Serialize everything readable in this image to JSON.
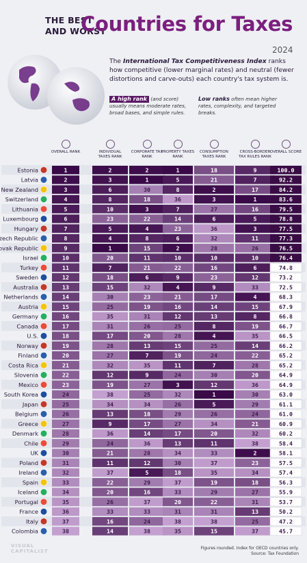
{
  "header": {
    "small_line1": "THE BEST",
    "small_line2": "AND WORST",
    "big": "Countries for Taxes",
    "year": "2024"
  },
  "description": {
    "prefix": "The ",
    "index_name": "International Tax Competitiveness Index",
    "rest": " ranks how competitive (lower marginal rates) and neutral (fewer distortions and carve-outs) each country's tax system is."
  },
  "legend": {
    "high_label": "A high rank",
    "high_suffix": " (and score) usually means moderate rates, broad bases, and simple rules.",
    "low_label": "Low ranks",
    "low_suffix": " often mean higher rates, complexity, and targeted breaks."
  },
  "footnote": {
    "line1": "Figures rounded. Index for OECD countries only.",
    "line2": "Source: Tax Foundation"
  },
  "brand": {
    "line1": "VISUAL",
    "line2": "CAPITALIST"
  },
  "colors": {
    "dark": "#4a0f55",
    "mid": "#7e2a8a",
    "light": "#b98ec4",
    "score_bg": "#3a0c45",
    "accent": "#7b1f7e"
  },
  "chart_data": {
    "type": "table",
    "columns": [
      {
        "key": "overall",
        "label": "OVERALL RANK",
        "icon": "trophy-icon"
      },
      {
        "key": "individual",
        "label": "INDIVIDUAL TAXES RANK",
        "icon": "person-icon"
      },
      {
        "key": "corporate",
        "label": "CORPORATE TAX RANK",
        "icon": "building-icon"
      },
      {
        "key": "property",
        "label": "PROPERTY TAXES RANK",
        "icon": "house-icon"
      },
      {
        "key": "consumption",
        "label": "CONSUMPTION TAXES RANK",
        "icon": "cart-icon"
      },
      {
        "key": "crossborder",
        "label": "CROSS-BORDER TAX RULES RANK",
        "icon": "globe-icon"
      },
      {
        "key": "score",
        "label": "OVERALL SCORE",
        "icon": "magnifier-icon"
      }
    ],
    "rows": [
      {
        "country": "Estonia",
        "values": [
          1,
          2,
          2,
          1,
          18,
          9,
          "100.0"
        ]
      },
      {
        "country": "Latvia",
        "values": [
          2,
          3,
          1,
          5,
          21,
          7,
          "92.2"
        ]
      },
      {
        "country": "New Zealand",
        "values": [
          3,
          6,
          30,
          8,
          2,
          17,
          "84.2"
        ]
      },
      {
        "country": "Switzerland",
        "values": [
          4,
          8,
          18,
          36,
          3,
          1,
          "83.6"
        ]
      },
      {
        "country": "Lithuania",
        "values": [
          5,
          10,
          3,
          7,
          27,
          16,
          "79.5"
        ]
      },
      {
        "country": "Luxembourg",
        "values": [
          6,
          23,
          22,
          14,
          6,
          5,
          "78.8"
        ]
      },
      {
        "country": "Hungary",
        "values": [
          7,
          5,
          4,
          23,
          36,
          3,
          "77.5"
        ]
      },
      {
        "country": "Czech Republic",
        "values": [
          8,
          4,
          8,
          6,
          32,
          11,
          "77.3"
        ]
      },
      {
        "country": "Slovak Republic",
        "values": [
          9,
          1,
          15,
          2,
          28,
          26,
          "76.5"
        ]
      },
      {
        "country": "Israel",
        "values": [
          10,
          20,
          11,
          10,
          10,
          10,
          "76.4"
        ]
      },
      {
        "country": "Turkey",
        "values": [
          11,
          7,
          21,
          22,
          16,
          6,
          "74.8"
        ]
      },
      {
        "country": "Sweden",
        "values": [
          12,
          18,
          6,
          9,
          23,
          12,
          "73.2"
        ]
      },
      {
        "country": "Australia",
        "values": [
          13,
          15,
          32,
          4,
          9,
          33,
          "72.5"
        ]
      },
      {
        "country": "Netherlands",
        "values": [
          14,
          30,
          23,
          21,
          17,
          4,
          "68.3"
        ]
      },
      {
        "country": "Austria",
        "values": [
          15,
          25,
          19,
          16,
          14,
          15,
          "67.9"
        ]
      },
      {
        "country": "Germany",
        "values": [
          16,
          35,
          31,
          12,
          13,
          8,
          "66.8"
        ]
      },
      {
        "country": "Canada",
        "values": [
          17,
          31,
          26,
          25,
          8,
          19,
          "66.7"
        ]
      },
      {
        "country": "U.S.",
        "values": [
          18,
          17,
          20,
          28,
          4,
          35,
          "66.5"
        ]
      },
      {
        "country": "Norway",
        "values": [
          19,
          28,
          13,
          15,
          25,
          14,
          "66.2"
        ]
      },
      {
        "country": "Finland",
        "values": [
          20,
          27,
          7,
          19,
          24,
          22,
          "65.2"
        ]
      },
      {
        "country": "Costa Rica",
        "values": [
          21,
          32,
          35,
          11,
          7,
          28,
          "65.2"
        ]
      },
      {
        "country": "Slovenia",
        "values": [
          22,
          12,
          9,
          24,
          30,
          20,
          "64.9"
        ]
      },
      {
        "country": "Mexico",
        "values": [
          23,
          19,
          27,
          3,
          12,
          36,
          "64.9"
        ]
      },
      {
        "country": "South Korea",
        "values": [
          24,
          38,
          25,
          32,
          1,
          30,
          "63.0"
        ]
      },
      {
        "country": "Japan",
        "values": [
          25,
          34,
          34,
          26,
          5,
          29,
          "61.1"
        ]
      },
      {
        "country": "Belgium",
        "values": [
          26,
          13,
          18,
          29,
          26,
          24,
          "61.0"
        ]
      },
      {
        "country": "Greece",
        "values": [
          27,
          9,
          17,
          27,
          34,
          21,
          "60.9"
        ]
      },
      {
        "country": "Denmark",
        "values": [
          28,
          36,
          14,
          17,
          20,
          32,
          "60.2"
        ]
      },
      {
        "country": "Chile",
        "values": [
          29,
          24,
          36,
          13,
          11,
          38,
          "58.4"
        ]
      },
      {
        "country": "UK",
        "values": [
          30,
          21,
          28,
          34,
          33,
          2,
          "58.1"
        ]
      },
      {
        "country": "Poland",
        "values": [
          31,
          11,
          12,
          30,
          37,
          23,
          "57.5"
        ]
      },
      {
        "country": "Ireland",
        "values": [
          32,
          37,
          5,
          18,
          35,
          34,
          "57.4"
        ]
      },
      {
        "country": "Spain",
        "values": [
          33,
          22,
          29,
          37,
          19,
          18,
          "56.3"
        ]
      },
      {
        "country": "Iceland",
        "values": [
          34,
          20,
          16,
          33,
          29,
          27,
          "55.9"
        ]
      },
      {
        "country": "Portugal",
        "values": [
          35,
          26,
          37,
          20,
          22,
          31,
          "53.7"
        ]
      },
      {
        "country": "France",
        "values": [
          36,
          33,
          33,
          31,
          31,
          13,
          "50.2"
        ]
      },
      {
        "country": "Italy",
        "values": [
          37,
          16,
          24,
          38,
          38,
          25,
          "47.2"
        ]
      },
      {
        "country": "Colombia",
        "values": [
          38,
          14,
          38,
          35,
          15,
          37,
          "45.7"
        ]
      }
    ]
  }
}
